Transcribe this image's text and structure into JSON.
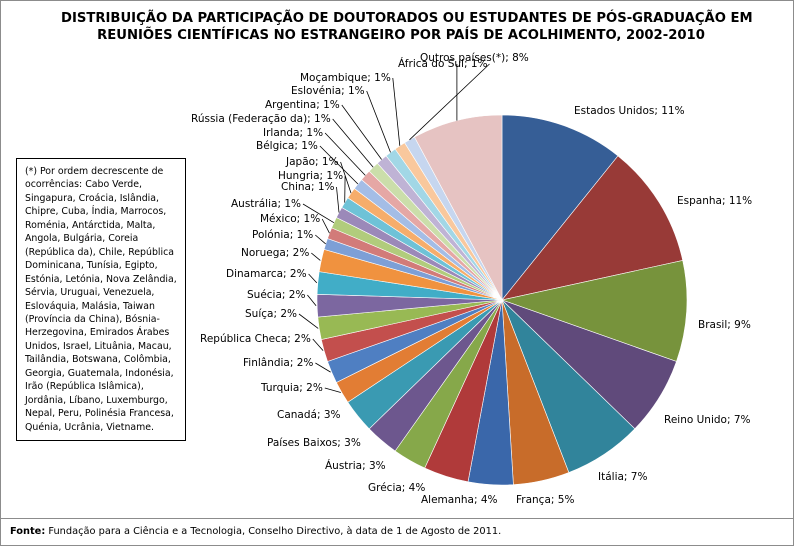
{
  "chart_data": {
    "type": "pie",
    "title_lines": [
      "DISTRIBUIÇÃO DA PARTICIPAÇÃO DE DOUTORADOS OU ESTUDANTES DE PÓS-GRADUAÇÃO EM",
      "REUNIÕES CIENTÍFICAS NO ESTRANGEIRO POR PAÍS DE ACOLHIMENTO, 2002-2010"
    ],
    "value_unit": "%",
    "slices": [
      {
        "label": "Estados Unidos",
        "value": 11,
        "color": "#365e96"
      },
      {
        "label": "Espanha",
        "value": 11,
        "color": "#983a37"
      },
      {
        "label": "Brasil",
        "value": 9,
        "color": "#77933c"
      },
      {
        "label": "Reino Unido",
        "value": 7,
        "color": "#604a7b"
      },
      {
        "label": "Itália",
        "value": 7,
        "color": "#31849b"
      },
      {
        "label": "França",
        "value": 5,
        "color": "#c86c2a"
      },
      {
        "label": "Alemanha",
        "value": 4,
        "color": "#3a67aa"
      },
      {
        "label": "Grécia",
        "value": 4,
        "color": "#b03a3a"
      },
      {
        "label": "Áustria",
        "value": 3,
        "color": "#86a84a"
      },
      {
        "label": "Países Baixos",
        "value": 3,
        "color": "#6d578e"
      },
      {
        "label": "Canadá",
        "value": 3,
        "color": "#3a9ab2"
      },
      {
        "label": "Turquia",
        "value": 2,
        "color": "#e27d34"
      },
      {
        "label": "Finlândia",
        "value": 2,
        "color": "#4f7fc2"
      },
      {
        "label": "República Checa",
        "value": 2,
        "color": "#c34f4d"
      },
      {
        "label": "Suíça",
        "value": 2,
        "color": "#98b954"
      },
      {
        "label": "Suécia",
        "value": 2,
        "color": "#7c67a0"
      },
      {
        "label": "Dinamarca",
        "value": 2,
        "color": "#41adc7"
      },
      {
        "label": "Noruega",
        "value": 2,
        "color": "#f0923f"
      },
      {
        "label": "Polónia",
        "value": 1,
        "color": "#7d9fd6"
      },
      {
        "label": "México",
        "value": 1,
        "color": "#d27b79"
      },
      {
        "label": "Austrália",
        "value": 1,
        "color": "#b1cc7c"
      },
      {
        "label": "China",
        "value": 1,
        "color": "#9b89b9"
      },
      {
        "label": "Hungria",
        "value": 1,
        "color": "#6ec2d7"
      },
      {
        "label": "Japão",
        "value": 1,
        "color": "#f6ad6b"
      },
      {
        "label": "Bélgica",
        "value": 1,
        "color": "#a4bde6"
      },
      {
        "label": "Irlanda",
        "value": 1,
        "color": "#e5a7a5"
      },
      {
        "label": "Rússia (Federação da)",
        "value": 1,
        "color": "#cbdeaa"
      },
      {
        "label": "Argentina",
        "value": 1,
        "color": "#bfb3d5"
      },
      {
        "label": "Eslovénia",
        "value": 1,
        "color": "#a2d7e6"
      },
      {
        "label": "Moçambique",
        "value": 1,
        "color": "#f9c89d"
      },
      {
        "label": "África do Sul",
        "value": 1,
        "color": "#c6d6ef"
      },
      {
        "label": "Outros países(*)",
        "value": 8,
        "color": "#e6c3c2"
      }
    ]
  },
  "note": "(*) Por ordem decrescente de ocorrências: Cabo Verde, Singapura, Croácia, Islândia, Chipre, Cuba, Índia, Marrocos, Roménia, Antárctida, Malta, Angola, Bulgária, Coreia (República da), Chile, República Dominicana, Tunísia, Egipto, Estónia, Letónia, Nova Zelândia, Sérvia, Uruguai, Venezuela, Eslováquia, Malásia, Taiwan (Província da China), Bósnia-Herzegovina, Emirados Árabes Unidos, Israel, Lituânia, Macau, Tailândia, Botswana, Colômbia, Georgia, Guatemala, Indonésia, Irão (República Islâmica), Jordânia, Líbano, Luxemburgo, Nepal, Peru, Polinésia Francesa, Quénia, Ucrânia, Vietname.",
  "source": {
    "label": "Fonte:",
    "text": " Fundação para a Ciência e a Tecnologia, Conselho Directivo, à data de 1 de Agosto de 2011."
  }
}
